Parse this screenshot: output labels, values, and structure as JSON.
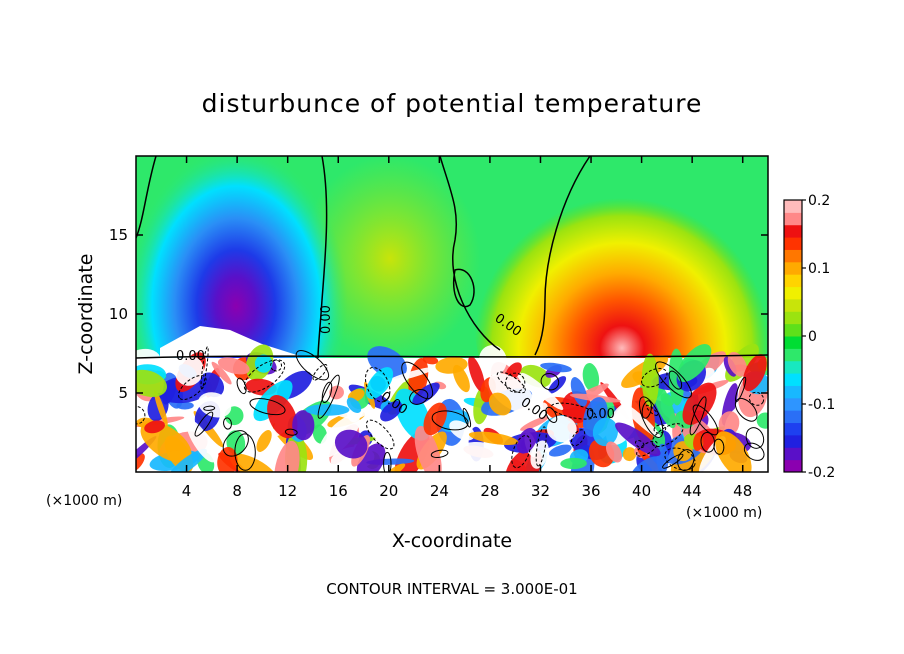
{
  "chart_data": {
    "type": "heatmap",
    "title": "disturbunce of potential temperature",
    "xlabel": "X-coordinate",
    "ylabel": "Z-coordinate",
    "x_unit_left": "(×1000 m)",
    "x_unit_right": "(×1000 m)",
    "xlim": [
      0,
      50
    ],
    "ylim": [
      0,
      20
    ],
    "xticks": [
      4,
      8,
      12,
      16,
      20,
      24,
      28,
      32,
      36,
      40,
      44,
      48
    ],
    "yticks": [
      5,
      10,
      15
    ],
    "colorbar": {
      "range": [
        -0.2,
        0.2
      ],
      "tick_values": [
        0.2,
        0.1,
        0,
        -0.1,
        -0.2
      ],
      "tick_labels": [
        "0.2",
        "0.1",
        "0",
        "-0.1",
        "-0.2"
      ],
      "colors": [
        "#8b00b0",
        "#5a10c8",
        "#2020e0",
        "#1e40f0",
        "#2a6ff6",
        "#2e95ff",
        "#18b8ff",
        "#00e0ff",
        "#18e8c0",
        "#2ee86a",
        "#00dd33",
        "#5ee01a",
        "#9be310",
        "#c8e40a",
        "#f0f000",
        "#ffd400",
        "#ffaa00",
        "#ff7700",
        "#ff3300",
        "#ee1111",
        "#ff8888",
        "#ffbbbb"
      ]
    },
    "contour_labels": [
      "0.00",
      "0.00",
      "0.00",
      "0.00",
      "0.00",
      "0.00"
    ],
    "contour_interval_text": "CONTOUR INTERVAL = 3.000E-01"
  }
}
